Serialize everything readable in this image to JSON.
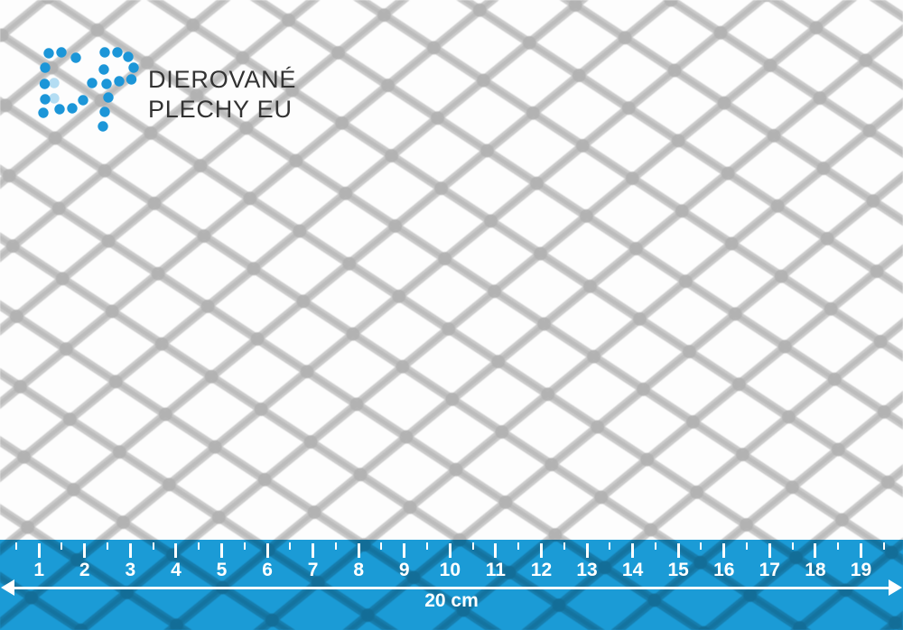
{
  "brand": {
    "logo_line1": "DIEROVANÉ",
    "logo_line2": "PLECHY EU",
    "logo_mark": "DP dot-matrix monogram"
  },
  "colors": {
    "accent_blue": "#1b9cd8",
    "dot_blue": "#1c96d8",
    "dot_blue_light": "#b4ddf3",
    "logo_text": "#323232",
    "ruler_white": "#ffffff"
  },
  "ruler": {
    "numbers": [
      1,
      2,
      3,
      4,
      5,
      6,
      7,
      8,
      9,
      10,
      11,
      12,
      13,
      14,
      15,
      16,
      17,
      18,
      19
    ],
    "length_label": "20 cm"
  }
}
